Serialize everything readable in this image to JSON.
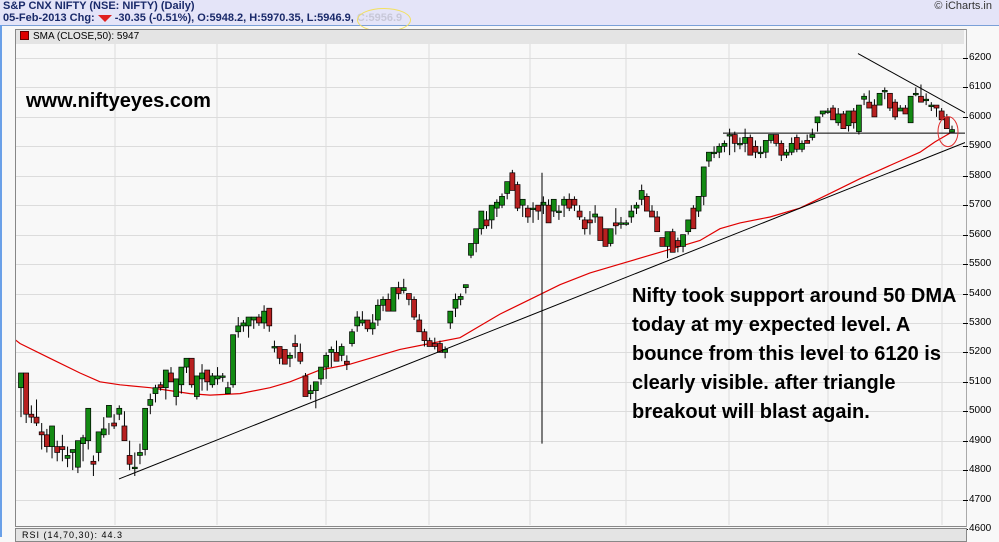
{
  "header": {
    "title": "S&P CNX NIFTY (NSE: NIFTY) (Daily)",
    "date": "05-Feb-2013",
    "chg_label": "Chg:",
    "change": "-30.35 (-0.51%),",
    "open": "O:5948.2,",
    "high": "H:5970.35,",
    "low": "L:5946.9,",
    "close": "C:5956.9",
    "copyright": "© iCharts.in"
  },
  "legend": {
    "label": "SMA (CLOSE,50): 5947",
    "color": "#e00000"
  },
  "annotations": {
    "watermark": "www.niftyeyes.com",
    "note": "Nifty took support around 50 DMA today at my expected level. A bounce from this level to 6120 is clearly visible. after triangle breakout will blast again."
  },
  "bottom_panel": {
    "label": "RSI (14,70,30): 44.3"
  },
  "colors": {
    "up": "#138a13",
    "down": "#b82020",
    "sma": "#e00000",
    "grid": "#dcdcdc",
    "header_bg": "#e4e4f8"
  },
  "chart_data": {
    "type": "candlestick",
    "title": "S&P CNX NIFTY (NSE: NIFTY) (Daily)",
    "ylabel": "",
    "xlabel": "",
    "ylim": [
      4600,
      6200
    ],
    "yticks": [
      6200,
      6100,
      6000,
      5900,
      5800,
      5700,
      5600,
      5500,
      5400,
      5300,
      5200,
      5100,
      5000,
      4900,
      4800,
      4700,
      4600
    ],
    "grid": true,
    "legend": [
      "SMA (CLOSE,50): 5947"
    ],
    "last_bar": {
      "date": "05-Feb-2013",
      "open": 5948.2,
      "high": 5970.35,
      "low": 5946.9,
      "close": 5956.9
    },
    "candles": [
      [
        5080,
        5130,
        4980,
        5130
      ],
      [
        5130,
        5130,
        4960,
        4990
      ],
      [
        4990,
        5020,
        4960,
        4980
      ],
      [
        4980,
        5040,
        4950,
        4960
      ],
      [
        4930,
        4960,
        4870,
        4920
      ],
      [
        4920,
        4940,
        4860,
        4880
      ],
      [
        4880,
        4950,
        4840,
        4950
      ],
      [
        4880,
        4900,
        4830,
        4860
      ],
      [
        4880,
        4920,
        4830,
        4870
      ],
      [
        4840,
        4880,
        4810,
        4850
      ],
      [
        4860,
        4870,
        4800,
        4870
      ],
      [
        4810,
        4880,
        4790,
        4900
      ],
      [
        4890,
        4920,
        4830,
        4910
      ],
      [
        4900,
        4920,
        4870,
        5010
      ],
      [
        4830,
        4850,
        4780,
        4820
      ],
      [
        4860,
        4900,
        4830,
        4930
      ],
      [
        4920,
        4980,
        4910,
        4940
      ],
      [
        4980,
        4960,
        4920,
        5020
      ],
      [
        4960,
        4990,
        4940,
        4950
      ],
      [
        4990,
        5020,
        4970,
        5010
      ],
      [
        4950,
        5000,
        4930,
        4900
      ],
      [
        4850,
        4900,
        4800,
        4820
      ],
      [
        4810,
        4860,
        4780,
        4810
      ],
      [
        4850,
        4890,
        4820,
        4860
      ],
      [
        4870,
        4920,
        4850,
        5010
      ],
      [
        5020,
        5060,
        4990,
        5040
      ],
      [
        5060,
        5090,
        5030,
        5080
      ],
      [
        5090,
        5100,
        5070,
        5080
      ],
      [
        5080,
        5140,
        5040,
        5140
      ],
      [
        5130,
        5150,
        5100,
        5100
      ],
      [
        5050,
        5110,
        5020,
        5110
      ],
      [
        5090,
        5150,
        5060,
        5150
      ],
      [
        5150,
        5180,
        5130,
        5180
      ],
      [
        5180,
        5160,
        5080,
        5090
      ],
      [
        5050,
        5120,
        5040,
        5120
      ],
      [
        5110,
        5160,
        5070,
        5130
      ],
      [
        5140,
        5130,
        5070,
        5100
      ],
      [
        5090,
        5130,
        5080,
        5120
      ],
      [
        5110,
        5150,
        5090,
        5120
      ],
      [
        5120,
        5130,
        5100,
        5120
      ],
      [
        5060,
        5100,
        5060,
        5080
      ],
      [
        5090,
        5240,
        5080,
        5260
      ],
      [
        5270,
        5320,
        5250,
        5290
      ],
      [
        5290,
        5310,
        5270,
        5300
      ],
      [
        5290,
        5320,
        5250,
        5320
      ],
      [
        5310,
        5320,
        5280,
        5320
      ],
      [
        5320,
        5330,
        5290,
        5300
      ],
      [
        5300,
        5360,
        5280,
        5340
      ],
      [
        5350,
        5330,
        5270,
        5290
      ],
      [
        5220,
        5240,
        5200,
        5220
      ],
      [
        5220,
        5220,
        5160,
        5180
      ],
      [
        5210,
        5190,
        5160,
        5160
      ],
      [
        5180,
        5200,
        5150,
        5190
      ],
      [
        5230,
        5260,
        5180,
        5220
      ],
      [
        5200,
        5230,
        5160,
        5170
      ],
      [
        5120,
        5130,
        5070,
        5050
      ],
      [
        5060,
        5090,
        5040,
        5070
      ],
      [
        5070,
        5080,
        5010,
        5100
      ],
      [
        5110,
        5130,
        5090,
        5150
      ],
      [
        5150,
        5200,
        5110,
        5190
      ],
      [
        5200,
        5220,
        5150,
        5210
      ],
      [
        5200,
        5240,
        5200,
        5170
      ],
      [
        5190,
        5230,
        5170,
        5220
      ],
      [
        5170,
        5190,
        5140,
        5160
      ],
      [
        5230,
        5280,
        5220,
        5270
      ],
      [
        5290,
        5340,
        5270,
        5320
      ],
      [
        5300,
        5340,
        5290,
        5310
      ],
      [
        5310,
        5310,
        5270,
        5280
      ],
      [
        5280,
        5330,
        5260,
        5300
      ],
      [
        5310,
        5380,
        5290,
        5360
      ],
      [
        5360,
        5390,
        5340,
        5380
      ],
      [
        5380,
        5400,
        5350,
        5340
      ],
      [
        5340,
        5390,
        5340,
        5420
      ],
      [
        5420,
        5440,
        5380,
        5400
      ],
      [
        5410,
        5450,
        5400,
        5420
      ],
      [
        5400,
        5400,
        5360,
        5380
      ],
      [
        5380,
        5390,
        5310,
        5320
      ],
      [
        5310,
        5330,
        5290,
        5270
      ],
      [
        5270,
        5280,
        5220,
        5240
      ],
      [
        5240,
        5250,
        5220,
        5220
      ],
      [
        5230,
        5250,
        5210,
        5220
      ],
      [
        5230,
        5240,
        5200,
        5200
      ],
      [
        5200,
        5220,
        5180,
        5210
      ],
      [
        5300,
        5340,
        5280,
        5340
      ],
      [
        5350,
        5400,
        5320,
        5380
      ],
      [
        5380,
        5400,
        5360,
        5390
      ],
      [
        5420,
        5430,
        5400,
        5430
      ],
      [
        5530,
        5560,
        5520,
        5570
      ],
      [
        5570,
        5610,
        5540,
        5620
      ],
      [
        5620,
        5650,
        5600,
        5680
      ],
      [
        5650,
        5680,
        5620,
        5630
      ],
      [
        5650,
        5700,
        5620,
        5700
      ],
      [
        5690,
        5720,
        5660,
        5710
      ],
      [
        5700,
        5740,
        5690,
        5730
      ],
      [
        5740,
        5760,
        5720,
        5780
      ],
      [
        5810,
        5820,
        5760,
        5750
      ],
      [
        5770,
        5780,
        5680,
        5690
      ],
      [
        5700,
        5720,
        5660,
        5720
      ],
      [
        5690,
        5700,
        5640,
        5660
      ],
      [
        5690,
        5710,
        5640,
        5690
      ],
      [
        5700,
        5700,
        5650,
        5680
      ],
      [
        5700,
        5730,
        5670,
        5710
      ],
      [
        5700,
        5720,
        5640,
        5640
      ],
      [
        5680,
        5720,
        5660,
        5720
      ],
      [
        5680,
        5700,
        5650,
        5680
      ],
      [
        5700,
        5730,
        5660,
        5720
      ],
      [
        5720,
        5740,
        5680,
        5690
      ],
      [
        5720,
        5730,
        5680,
        5700
      ],
      [
        5680,
        5700,
        5650,
        5660
      ],
      [
        5650,
        5660,
        5600,
        5620
      ],
      [
        5650,
        5680,
        5600,
        5640
      ],
      [
        5660,
        5700,
        5640,
        5670
      ],
      [
        5660,
        5640,
        5580,
        5580
      ],
      [
        5620,
        5600,
        5560,
        5560
      ],
      [
        5570,
        5600,
        5560,
        5620
      ],
      [
        5640,
        5690,
        5600,
        5630
      ],
      [
        5640,
        5660,
        5620,
        5640
      ],
      [
        5640,
        5650,
        5630,
        5640
      ],
      [
        5660,
        5700,
        5640,
        5680
      ],
      [
        5690,
        5710,
        5670,
        5700
      ],
      [
        5720,
        5770,
        5700,
        5750
      ],
      [
        5730,
        5740,
        5680,
        5680
      ],
      [
        5680,
        5700,
        5660,
        5660
      ],
      [
        5660,
        5680,
        5620,
        5610
      ],
      [
        5590,
        5580,
        5560,
        5560
      ],
      [
        5560,
        5590,
        5520,
        5610
      ],
      [
        5610,
        5620,
        5560,
        5540
      ],
      [
        5580,
        5590,
        5540,
        5560
      ],
      [
        5560,
        5600,
        5540,
        5600
      ],
      [
        5610,
        5650,
        5600,
        5650
      ],
      [
        5690,
        5700,
        5660,
        5620
      ],
      [
        5680,
        5700,
        5660,
        5730
      ],
      [
        5730,
        5760,
        5700,
        5830
      ],
      [
        5850,
        5880,
        5830,
        5880
      ],
      [
        5880,
        5900,
        5860,
        5880
      ],
      [
        5880,
        5910,
        5860,
        5900
      ],
      [
        5900,
        5920,
        5880,
        5910
      ],
      [
        5940,
        5960,
        5870,
        5940
      ],
      [
        5940,
        5950,
        5880,
        5910
      ],
      [
        5910,
        5930,
        5890,
        5910
      ],
      [
        5910,
        5960,
        5880,
        5930
      ],
      [
        5930,
        5940,
        5870,
        5870
      ],
      [
        5900,
        5920,
        5860,
        5880
      ],
      [
        5880,
        5900,
        5860,
        5880
      ],
      [
        5880,
        5920,
        5860,
        5920
      ],
      [
        5920,
        5940,
        5910,
        5940
      ],
      [
        5940,
        5940,
        5900,
        5910
      ],
      [
        5910,
        5920,
        5850,
        5870
      ],
      [
        5870,
        5890,
        5860,
        5880
      ],
      [
        5880,
        5930,
        5870,
        5910
      ],
      [
        5930,
        5940,
        5880,
        5890
      ],
      [
        5890,
        5920,
        5880,
        5910
      ],
      [
        5920,
        5940,
        5910,
        5910
      ],
      [
        5930,
        5960,
        5920,
        5940
      ],
      [
        5980,
        6000,
        5950,
        6000
      ],
      [
        6010,
        6020,
        6000,
        6020
      ],
      [
        6020,
        6030,
        6010,
        6020
      ],
      [
        6030,
        6040,
        5990,
        5990
      ],
      [
        5980,
        6030,
        5970,
        6010
      ],
      [
        6010,
        6020,
        5960,
        5960
      ],
      [
        5970,
        6020,
        5950,
        6020
      ],
      [
        6020,
        6030,
        5960,
        5980
      ],
      [
        5950,
        6030,
        5940,
        6040
      ],
      [
        6060,
        6080,
        6040,
        6070
      ],
      [
        6050,
        6090,
        6040,
        6030
      ],
      [
        6040,
        6060,
        6000,
        6000
      ],
      [
        6040,
        6080,
        6040,
        6080
      ],
      [
        6090,
        6100,
        6060,
        6090
      ],
      [
        6080,
        6070,
        6020,
        6030
      ],
      [
        6050,
        6060,
        5990,
        6000
      ],
      [
        6020,
        6040,
        6020,
        6030
      ],
      [
        6030,
        6040,
        6010,
        6010
      ],
      [
        5980,
        6070,
        6020,
        6070
      ],
      [
        6080,
        6100,
        6070,
        6080
      ],
      [
        6070,
        6110,
        6050,
        6050
      ],
      [
        6060,
        6080,
        6040,
        6060
      ],
      [
        6040,
        6050,
        6020,
        6040
      ],
      [
        6040,
        6040,
        6000,
        6030
      ],
      [
        6020,
        6030,
        5990,
        5990
      ],
      [
        6000,
        6010,
        5960,
        5960
      ],
      [
        5948.2,
        5970.35,
        5946.9,
        5956.9
      ]
    ],
    "sma_50": [
      [
        5,
        5270
      ],
      [
        20,
        5230
      ],
      [
        50,
        5180
      ],
      [
        80,
        5130
      ],
      [
        100,
        5100
      ],
      [
        120,
        5090
      ],
      [
        150,
        5080
      ],
      [
        170,
        5070
      ],
      [
        190,
        5060
      ],
      [
        210,
        5055
      ],
      [
        240,
        5060
      ],
      [
        270,
        5080
      ],
      [
        290,
        5100
      ],
      [
        320,
        5140
      ],
      [
        350,
        5160
      ],
      [
        380,
        5190
      ],
      [
        400,
        5210
      ],
      [
        430,
        5230
      ],
      [
        460,
        5250
      ],
      [
        480,
        5290
      ],
      [
        500,
        5330
      ],
      [
        530,
        5380
      ],
      [
        560,
        5430
      ],
      [
        590,
        5470
      ],
      [
        620,
        5500
      ],
      [
        650,
        5530
      ],
      [
        680,
        5560
      ],
      [
        700,
        5580
      ],
      [
        720,
        5620
      ],
      [
        740,
        5640
      ],
      [
        770,
        5660
      ],
      [
        800,
        5690
      ],
      [
        830,
        5740
      ],
      [
        860,
        5790
      ],
      [
        880,
        5820
      ],
      [
        900,
        5850
      ],
      [
        920,
        5880
      ],
      [
        935,
        5915
      ],
      [
        950,
        5945
      ]
    ],
    "lines": [
      {
        "name": "rising-trendline",
        "from": [
          119,
          4770
        ],
        "to": [
          1000,
          5960
        ]
      },
      {
        "name": "falling-trendline",
        "from": [
          858,
          6215
        ],
        "to": [
          999,
          5950
        ]
      },
      {
        "name": "horizontal-resistance",
        "from": [
          723,
          5945
        ],
        "to": [
          999,
          5945
        ]
      },
      {
        "name": "vertical-marker",
        "from": [
          542,
          5810
        ],
        "to": [
          542,
          4890
        ]
      }
    ]
  }
}
